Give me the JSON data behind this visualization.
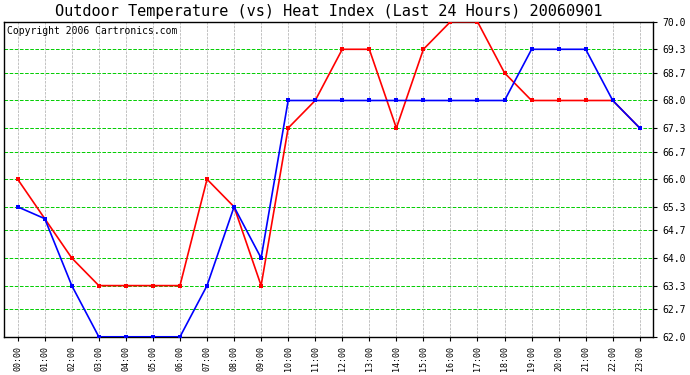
{
  "title": "Outdoor Temperature (vs) Heat Index (Last 24 Hours) 20060901",
  "copyright": "Copyright 2006 Cartronics.com",
  "x_labels": [
    "00:00",
    "01:00",
    "02:00",
    "03:00",
    "04:00",
    "05:00",
    "06:00",
    "07:00",
    "08:00",
    "09:00",
    "10:00",
    "11:00",
    "12:00",
    "13:00",
    "14:00",
    "15:00",
    "16:00",
    "17:00",
    "18:00",
    "19:00",
    "20:00",
    "21:00",
    "22:00",
    "23:00"
  ],
  "y_min": 62.0,
  "y_max": 70.0,
  "y_ticks": [
    62.0,
    62.7,
    63.3,
    64.0,
    64.7,
    65.3,
    66.0,
    66.7,
    67.3,
    68.0,
    68.7,
    69.3,
    70.0
  ],
  "temp_line": [
    65.3,
    65.0,
    63.3,
    62.0,
    62.0,
    62.0,
    62.0,
    63.3,
    65.3,
    64.0,
    68.0,
    68.0,
    68.0,
    68.0,
    68.0,
    68.0,
    68.0,
    68.0,
    68.0,
    69.3,
    69.3,
    69.3,
    68.0,
    67.3
  ],
  "heat_index_line": [
    66.0,
    65.0,
    64.0,
    63.3,
    63.3,
    63.3,
    63.3,
    66.0,
    65.3,
    63.3,
    67.3,
    68.0,
    69.3,
    69.3,
    67.3,
    69.3,
    70.0,
    70.0,
    68.7,
    68.0,
    68.0,
    68.0,
    68.0,
    67.3
  ],
  "temp_color": "#0000FF",
  "heat_color": "#FF0000",
  "bg_color": "#FFFFFF",
  "grid_h_color": "#00CC00",
  "grid_v_color": "#888888",
  "title_fontsize": 11,
  "copyright_fontsize": 7
}
